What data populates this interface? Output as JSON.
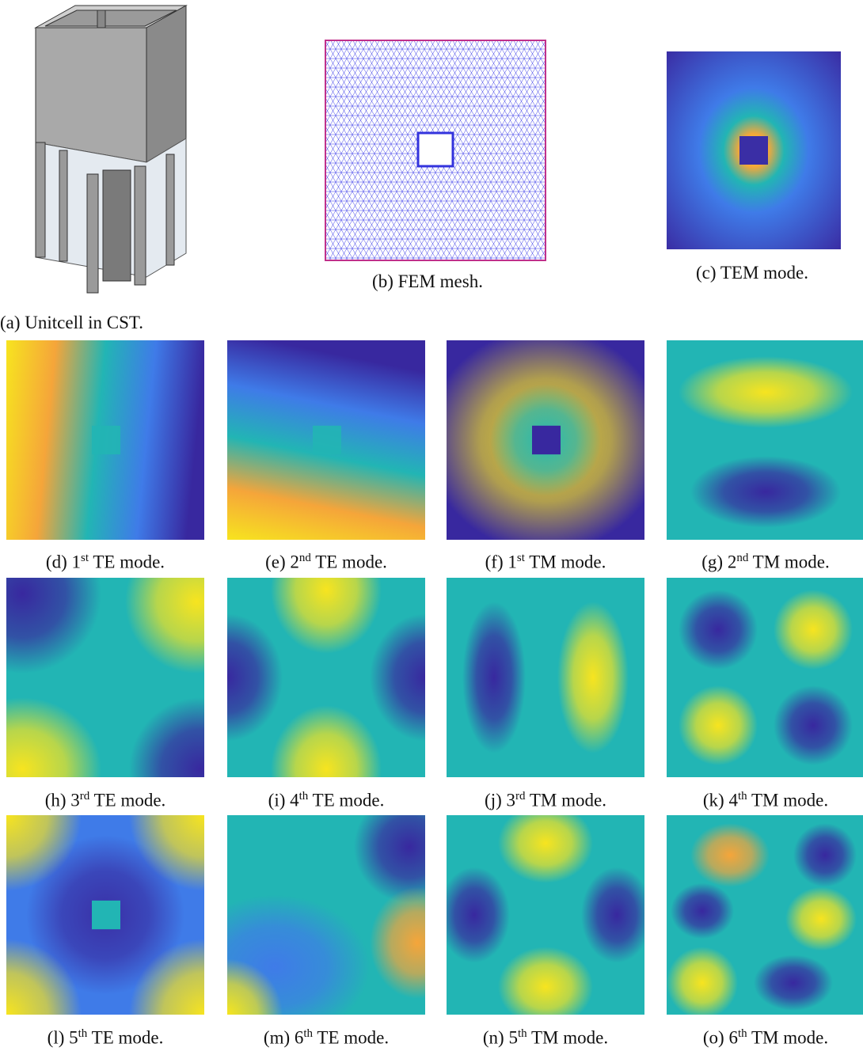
{
  "figure": {
    "panels": [
      {
        "label": "(a)",
        "caption": "Unitcell in CST."
      },
      {
        "label": "(b)",
        "caption": "FEM mesh."
      },
      {
        "label": "(c)",
        "caption": "TEM mode."
      },
      {
        "label": "(d)",
        "ordinal": "1",
        "suffix": "st",
        "caption": "TE mode."
      },
      {
        "label": "(e)",
        "ordinal": "2",
        "suffix": "nd",
        "caption": "TE mode."
      },
      {
        "label": "(f)",
        "ordinal": "1",
        "suffix": "st",
        "caption": "TM mode."
      },
      {
        "label": "(g)",
        "ordinal": "2",
        "suffix": "nd",
        "caption": "TM mode."
      },
      {
        "label": "(h)",
        "ordinal": "3",
        "suffix": "rd",
        "caption": "TE mode."
      },
      {
        "label": "(i)",
        "ordinal": "4",
        "suffix": "th",
        "caption": "TE mode."
      },
      {
        "label": "(j)",
        "ordinal": "3",
        "suffix": "rd",
        "caption": "TM mode."
      },
      {
        "label": "(k)",
        "ordinal": "4",
        "suffix": "th",
        "caption": "TM mode."
      },
      {
        "label": "(l)",
        "ordinal": "5",
        "suffix": "th",
        "caption": "TE mode."
      },
      {
        "label": "(m)",
        "ordinal": "6",
        "suffix": "th",
        "caption": "TE mode."
      },
      {
        "label": "(n)",
        "ordinal": "5",
        "suffix": "th",
        "caption": "TM mode."
      },
      {
        "label": "(o)",
        "ordinal": "6",
        "suffix": "th",
        "caption": "TM mode."
      }
    ]
  }
}
